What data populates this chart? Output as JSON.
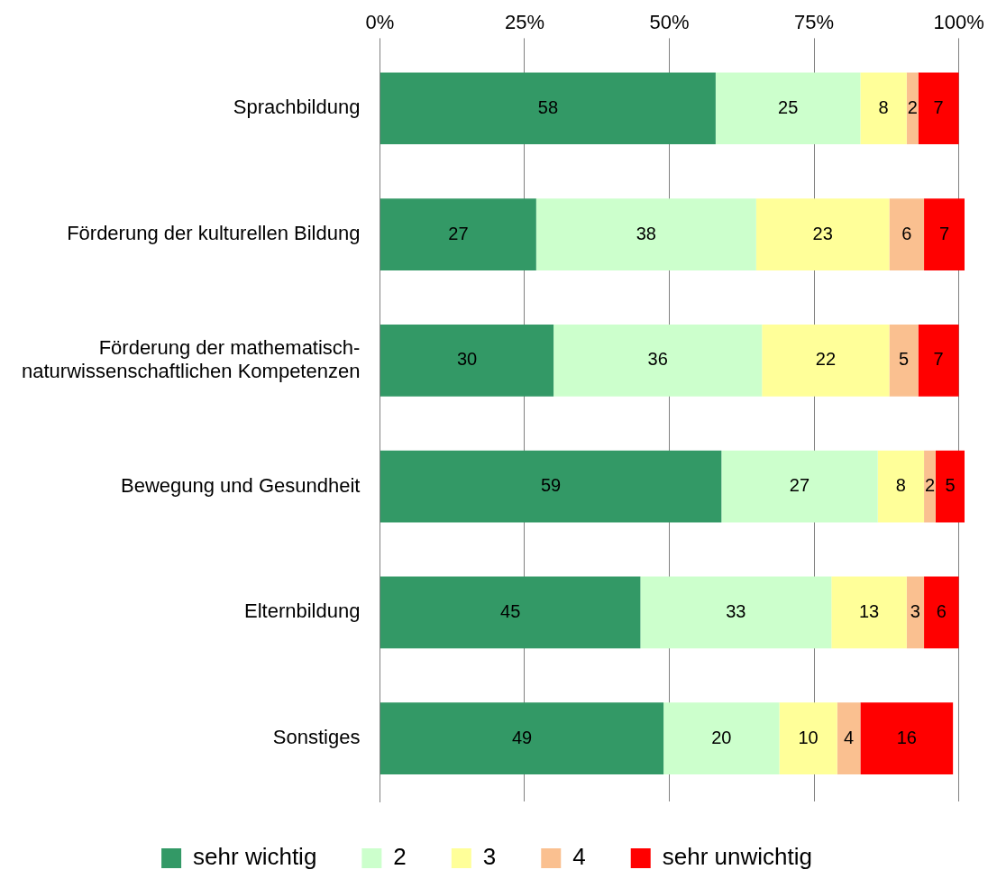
{
  "chart_data": {
    "type": "bar",
    "orientation": "horizontal",
    "stacked": true,
    "categories": [
      "Sprachbildung",
      "Förderung der kulturellen Bildung",
      "Förderung der mathematisch-\nnaturwissenschaftlichen Kompetenzen",
      "Bewegung und Gesundheit",
      "Elternbildung",
      "Sonstiges"
    ],
    "series": [
      {
        "name": "sehr wichtig",
        "color": "#339966",
        "values": [
          58,
          27,
          30,
          59,
          45,
          49
        ]
      },
      {
        "name": "2",
        "color": "#ccffcc",
        "values": [
          25,
          38,
          36,
          27,
          33,
          20
        ]
      },
      {
        "name": "3",
        "color": "#ffff99",
        "values": [
          8,
          23,
          22,
          8,
          13,
          10
        ]
      },
      {
        "name": "4",
        "color": "#fac090",
        "values": [
          2,
          6,
          5,
          2,
          3,
          4
        ]
      },
      {
        "name": "sehr unwichtig",
        "color": "#ff0000",
        "values": [
          7,
          7,
          7,
          5,
          6,
          16
        ]
      }
    ],
    "xlim": [
      0,
      101
    ],
    "xticks": [
      {
        "value": 0,
        "label": "0%"
      },
      {
        "value": 25,
        "label": "25%"
      },
      {
        "value": 50,
        "label": "50%"
      },
      {
        "value": 75,
        "label": "75%"
      },
      {
        "value": 100,
        "label": "100%"
      }
    ],
    "grid": "x",
    "legend": "bottom",
    "data_labels": true
  }
}
